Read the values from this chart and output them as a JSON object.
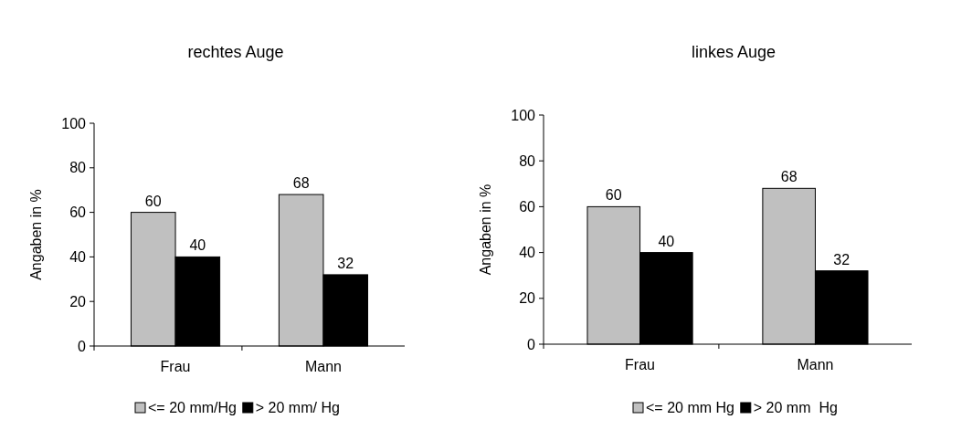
{
  "chart_data": [
    {
      "type": "bar",
      "title": "rechtes Auge",
      "ylabel": "Angaben in %",
      "categories": [
        "Frau",
        "Mann"
      ],
      "series": [
        {
          "name": "<= 20 mm/Hg",
          "color": "#c0c0c0",
          "values": [
            60,
            68
          ]
        },
        {
          "name": "> 20 mm/ Hg",
          "color": "#000000",
          "values": [
            40,
            32
          ]
        }
      ],
      "ylim": [
        0,
        100
      ],
      "yticks": [
        0,
        20,
        40,
        60,
        80,
        100
      ],
      "data_labels": true,
      "legend": "bottom",
      "grid": false
    },
    {
      "type": "bar",
      "title": "linkes Auge",
      "ylabel": "Angaben in %",
      "categories": [
        "Frau",
        "Mann"
      ],
      "series": [
        {
          "name": "<= 20 mm Hg",
          "color": "#c0c0c0",
          "values": [
            60,
            68
          ]
        },
        {
          "name": "> 20 mm  Hg",
          "color": "#000000",
          "values": [
            40,
            32
          ]
        }
      ],
      "ylim": [
        0,
        100
      ],
      "yticks": [
        0,
        20,
        40,
        60,
        80,
        100
      ],
      "data_labels": true,
      "legend": "bottom",
      "grid": false
    }
  ]
}
